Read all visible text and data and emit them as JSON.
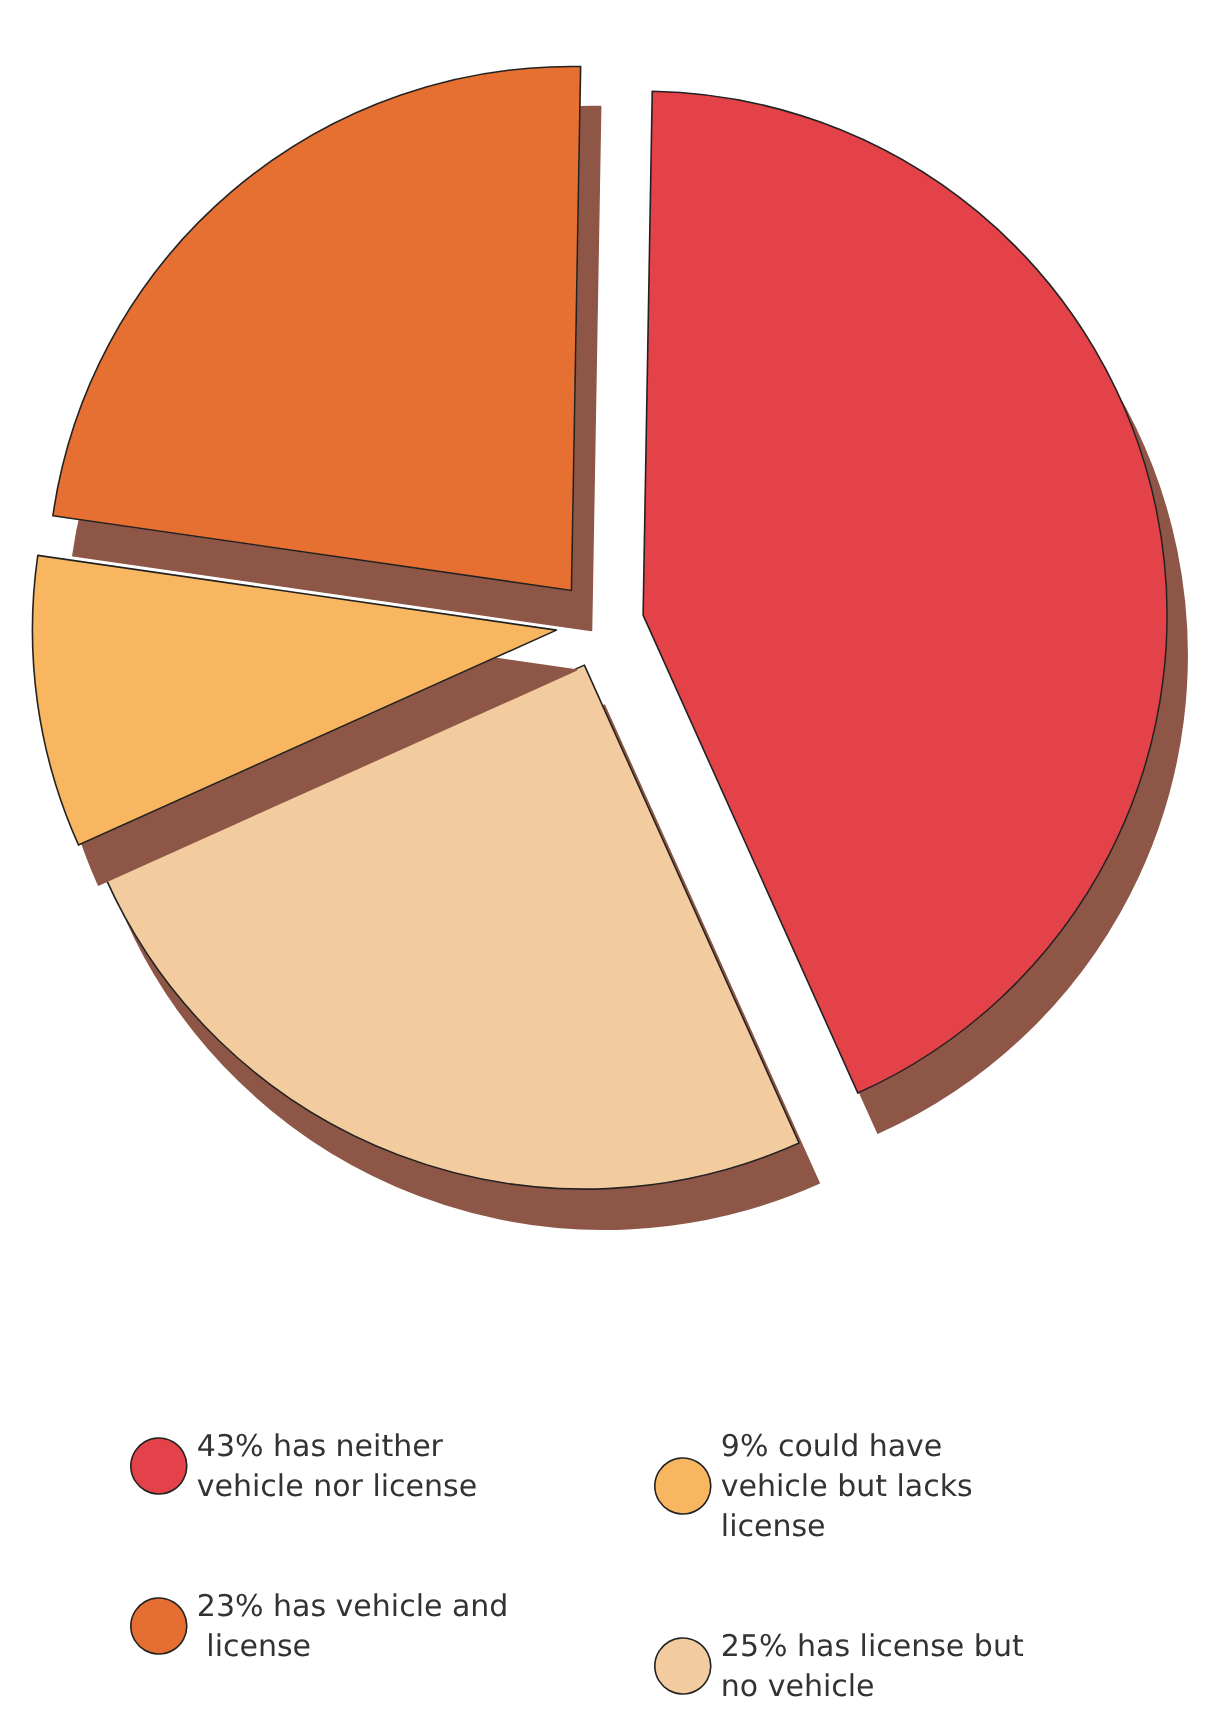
{
  "chart_data": {
    "type": "pie",
    "categories": [
      "has neither vehicle nor license",
      "has license but no vehicle",
      "could have vehicle but lacks license",
      "has vehicle and license"
    ],
    "values": [
      43,
      25,
      9,
      23
    ],
    "value_labels": [
      "43%",
      "25%",
      "9%",
      "23%"
    ],
    "colors": [
      "#e4424a",
      "#f2cb9e",
      "#f9b660",
      "#e56f32"
    ],
    "legend": "bottom"
  }
}
